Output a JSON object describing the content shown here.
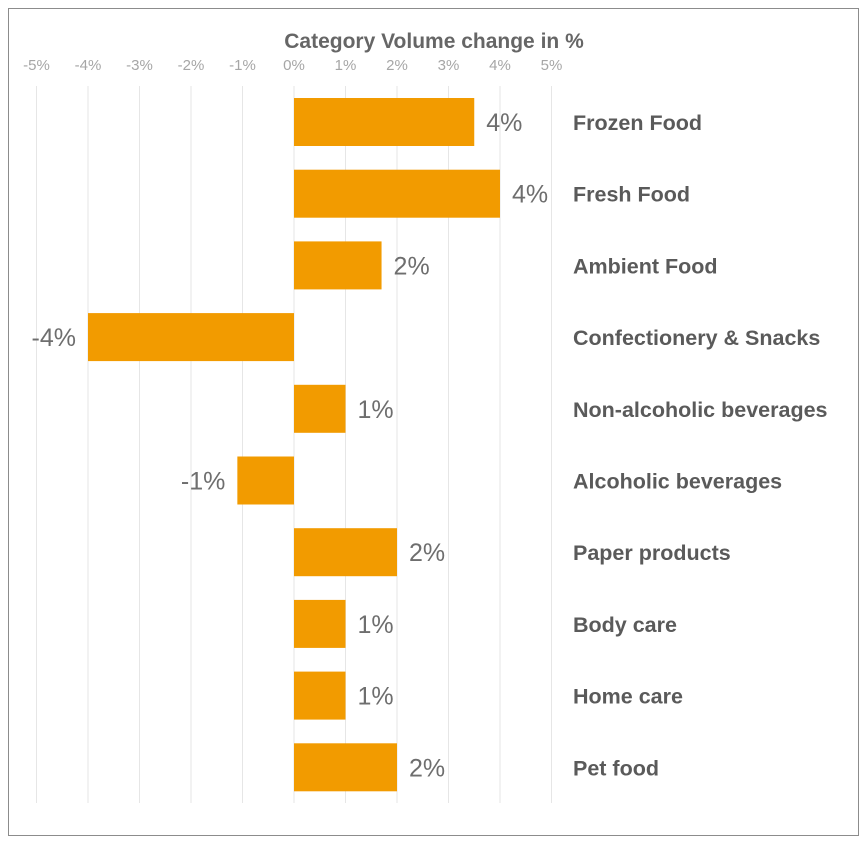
{
  "chart_data": {
    "type": "bar",
    "orientation": "horizontal",
    "title": "Category Volume change in %",
    "xlabel": "",
    "ylabel": "",
    "xlim": [
      -5,
      5
    ],
    "tick_values": [
      -5,
      -4,
      -3,
      -2,
      -1,
      0,
      1,
      2,
      3,
      4,
      5
    ],
    "tick_labels": [
      "-5%",
      "-4%",
      "-3%",
      "-2%",
      "-1%",
      "0%",
      "1%",
      "2%",
      "3%",
      "4%",
      "5%"
    ],
    "grid": true,
    "categories": [
      "Frozen Food",
      "Fresh Food",
      "Ambient Food",
      "Confectionery & Snacks",
      "Non-alcoholic beverages",
      "Alcoholic beverages",
      "Paper products",
      "Body care",
      "Home care",
      "Pet food"
    ],
    "values": [
      3.5,
      4.0,
      1.7,
      -4.0,
      1.0,
      -1.1,
      2.0,
      1.0,
      1.0,
      2.0
    ],
    "data_labels": [
      "4%",
      "4%",
      "2%",
      "-4%",
      "1%",
      "-1%",
      "2%",
      "1%",
      "1%",
      "2%"
    ],
    "bar_color": "#f29b00"
  }
}
